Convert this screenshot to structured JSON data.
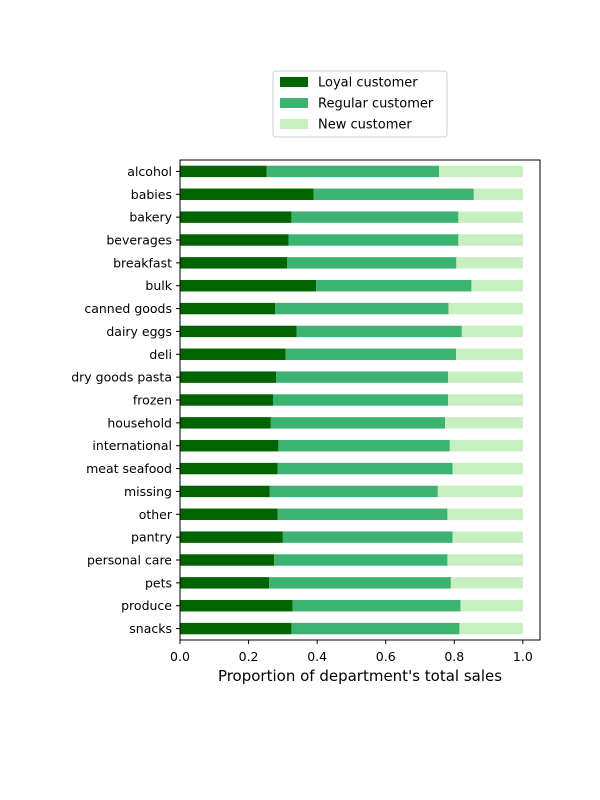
{
  "chart_data": {
    "type": "bar",
    "orientation": "horizontal",
    "stacked": true,
    "categories": [
      "alcohol",
      "babies",
      "bakery",
      "beverages",
      "breakfast",
      "bulk",
      "canned goods",
      "dairy eggs",
      "deli",
      "dry goods pasta",
      "frozen",
      "household",
      "international",
      "meat seafood",
      "missing",
      "other",
      "pantry",
      "personal care",
      "pets",
      "produce",
      "snacks"
    ],
    "series": [
      {
        "name": "Loyal customer",
        "color": "#006400",
        "values": [
          0.253,
          0.39,
          0.325,
          0.317,
          0.313,
          0.397,
          0.278,
          0.34,
          0.308,
          0.28,
          0.272,
          0.265,
          0.287,
          0.285,
          0.262,
          0.285,
          0.3,
          0.275,
          0.26,
          0.328,
          0.325
        ]
      },
      {
        "name": "Regular customer",
        "color": "#3cb371",
        "values": [
          0.503,
          0.467,
          0.487,
          0.495,
          0.493,
          0.453,
          0.505,
          0.482,
          0.497,
          0.502,
          0.51,
          0.508,
          0.5,
          0.51,
          0.49,
          0.495,
          0.495,
          0.505,
          0.53,
          0.49,
          0.49
        ]
      },
      {
        "name": "New customer",
        "color": "#c7efc0",
        "values": [
          0.244,
          0.143,
          0.188,
          0.188,
          0.194,
          0.15,
          0.217,
          0.178,
          0.195,
          0.218,
          0.218,
          0.227,
          0.213,
          0.205,
          0.248,
          0.22,
          0.205,
          0.22,
          0.21,
          0.182,
          0.185
        ]
      }
    ],
    "xlabel": "Proportion of department's total sales",
    "ylabel": "",
    "xlim": [
      0.0,
      1.05
    ],
    "xticks": [
      "0.0",
      "0.2",
      "0.4",
      "0.6",
      "0.8",
      "1.0"
    ],
    "legend": {
      "placement": "upper center, above the plot"
    },
    "grid": false
  }
}
